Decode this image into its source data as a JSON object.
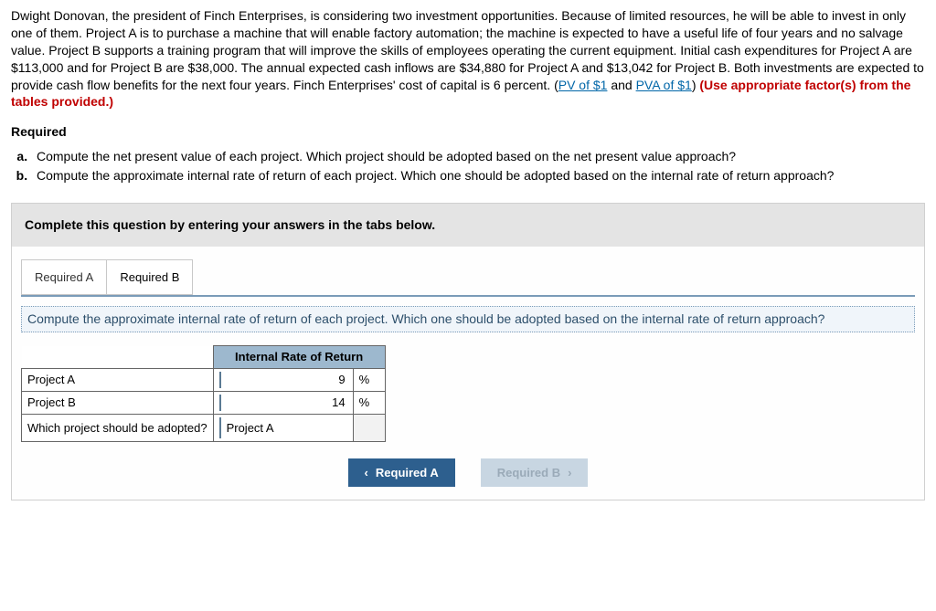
{
  "question": {
    "intro_a": "Dwight Donovan, the president of Finch Enterprises, is considering two investment opportunities. Because of limited resources, he will be able to invest in only one of them. Project A is to purchase a machine that will enable factory automation; the machine is expected to have a useful life of four years and no salvage value. Project B supports a training program that will improve the skills of employees operating the current equipment. Initial cash expenditures for Project A are $113,000 and for Project B are $38,000. The annual expected cash inflows are $34,880 for Project A and $13,042 for Project B. Both investments are expected to provide cash flow benefits for the next four years. Finch Enterprises' cost of capital is 6 percent. (",
    "pv_link": "PV of $1",
    "and_text": " and ",
    "pva_link": "PVA of $1",
    "close_paren": ") ",
    "red_text": "(Use appropriate factor(s) from the tables provided.)"
  },
  "required_heading": "Required",
  "requirements": [
    "Compute the net present value of each project. Which project should be adopted based on the net present value approach?",
    "Compute the approximate internal rate of return of each project. Which one should be adopted based on the internal rate of return approach?"
  ],
  "instruction_bar": "Complete this question by entering your answers in the tabs below.",
  "tabs": {
    "a": "Required A",
    "b": "Required B"
  },
  "sub_instruction": "Compute the approximate internal rate of return of each project. Which one should be adopted based on the internal rate of return approach?",
  "table": {
    "header": "Internal Rate of Return",
    "rows": [
      {
        "label": "Project A",
        "value": "9",
        "unit": "%"
      },
      {
        "label": "Project B",
        "value": "14",
        "unit": "%"
      }
    ],
    "select_row": {
      "label": "Which project should be adopted?",
      "value": "Project A"
    }
  },
  "nav": {
    "prev": "Required A",
    "next": "Required B"
  }
}
